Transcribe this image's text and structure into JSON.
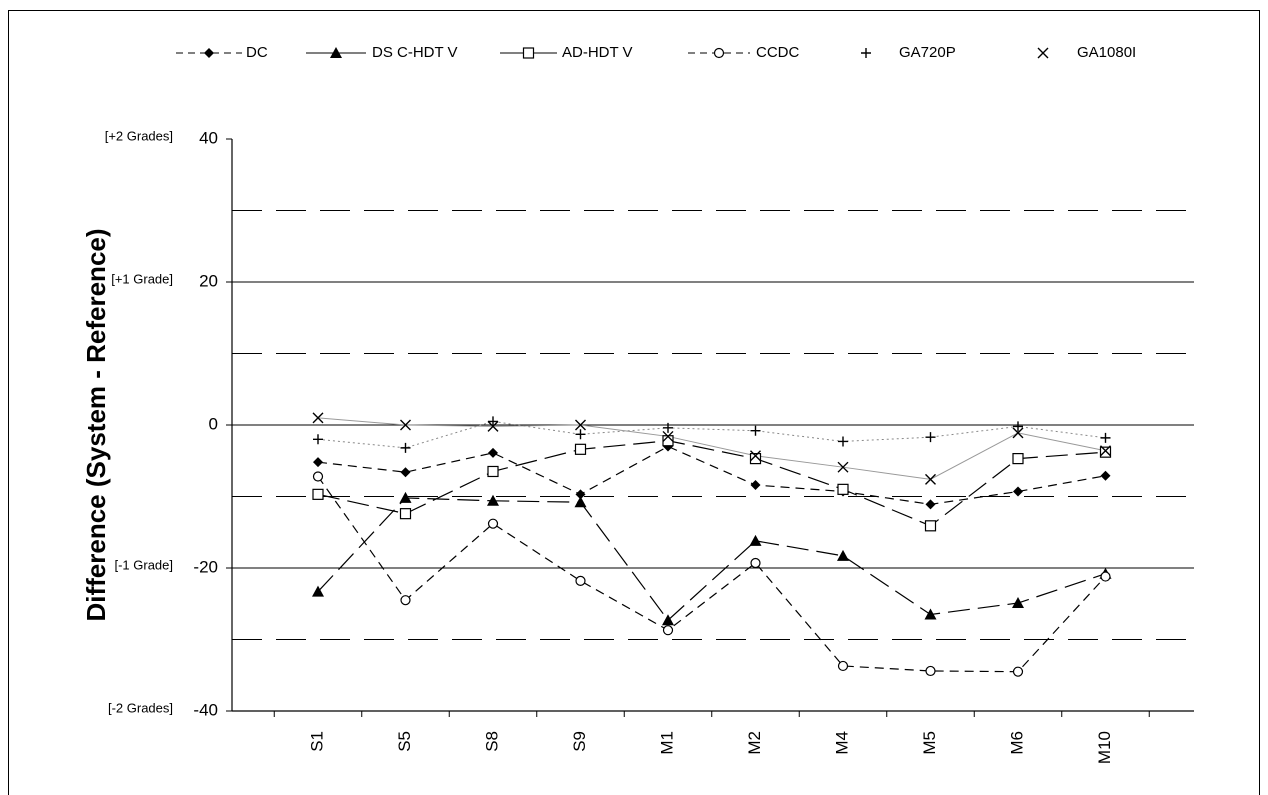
{
  "chart_data": {
    "type": "line",
    "title": "",
    "xlabel": "",
    "ylabel": "Difference (System - Reference)",
    "ylim": [
      -40,
      40
    ],
    "yticks": [
      "40",
      "20",
      "0",
      "-20",
      "-40"
    ],
    "ytick_values": [
      40,
      20,
      0,
      -20,
      -40
    ],
    "grade_labels": [
      {
        "value": 40,
        "text": "[+2 Grades]"
      },
      {
        "value": 20,
        "text": "[+1 Grade]"
      },
      {
        "value": -20,
        "text": "[-1 Grade]"
      },
      {
        "value": -40,
        "text": "[-2 Grades]"
      }
    ],
    "solid_gridlines": [
      20,
      0,
      -20
    ],
    "dashed_gridlines": [
      30,
      10,
      -10,
      -30
    ],
    "legend_position": "top",
    "categories": [
      "S1",
      "S5",
      "S8",
      "S9",
      "M1",
      "M2",
      "M4",
      "M5",
      "M6",
      "M10"
    ],
    "series": [
      {
        "name": "DC",
        "marker": "diamond",
        "line": "dash",
        "color": "#000000",
        "values": [
          -5.2,
          -6.6,
          -3.9,
          -9.7,
          -3.0,
          -8.4,
          -9.3,
          -11.1,
          -9.3,
          -7.1
        ]
      },
      {
        "name": "DS C-HDT V",
        "marker": "triangle",
        "line": "longdash",
        "color": "#000000",
        "values": [
          -23.3,
          -10.2,
          -10.6,
          -10.8,
          -27.3,
          -16.2,
          -18.3,
          -26.5,
          -24.9,
          -20.8
        ]
      },
      {
        "name": "AD-HDT V",
        "marker": "square",
        "line": "longdash",
        "color": "#000000",
        "values": [
          -9.7,
          -12.4,
          -6.5,
          -3.4,
          -2.2,
          -4.7,
          -9.0,
          -14.1,
          -4.7,
          -3.8
        ]
      },
      {
        "name": "CCDC",
        "marker": "circle",
        "line": "dash",
        "color": "#000000",
        "values": [
          -7.2,
          -24.5,
          -13.8,
          -21.8,
          -28.7,
          -19.3,
          -33.7,
          -34.4,
          -34.5,
          -21.2
        ]
      },
      {
        "name": "GA720P",
        "marker": "plus",
        "line": "dot",
        "color": "#888888",
        "values": [
          -2.0,
          -3.2,
          0.5,
          -1.3,
          -0.4,
          -0.8,
          -2.3,
          -1.7,
          -0.2,
          -1.8
        ]
      },
      {
        "name": "GA1080I",
        "marker": "x",
        "line": "solid-gray",
        "color": "#999999",
        "values": [
          1.0,
          0.0,
          -0.2,
          0.0,
          -1.6,
          -4.3,
          -5.9,
          -7.6,
          -1.1,
          -3.6
        ]
      }
    ]
  }
}
